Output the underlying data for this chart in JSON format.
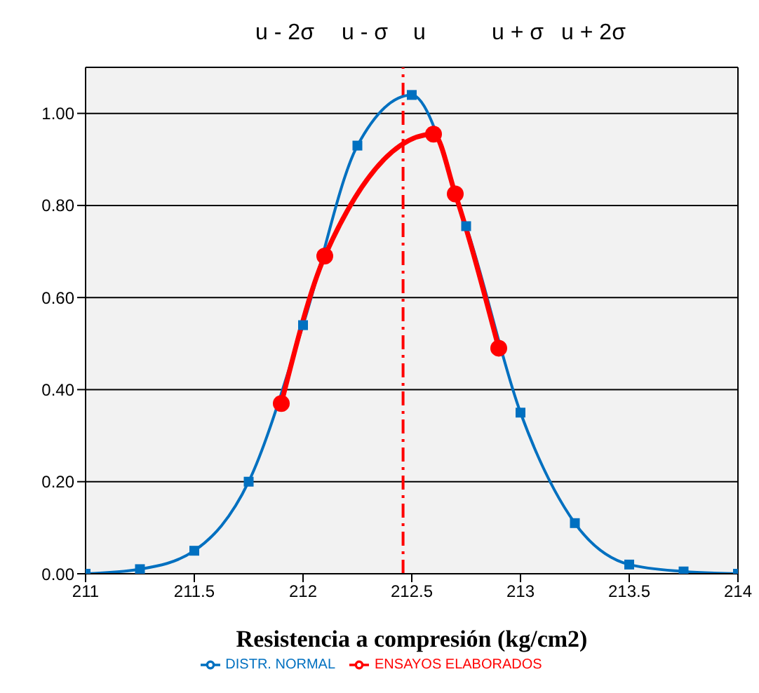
{
  "chart_data": {
    "type": "line",
    "xlabel": "Resistencia a compresión (kg/cm2)",
    "xlim": [
      211,
      214
    ],
    "xticks": [
      211,
      211.5,
      212,
      212.5,
      213,
      213.5,
      214
    ],
    "ylim": [
      0,
      1.1
    ],
    "yticks": [
      {
        "value": 0,
        "label": "0.00"
      },
      {
        "value": 0.2,
        "label": "0.20"
      },
      {
        "value": 0.4,
        "label": "0.40"
      },
      {
        "value": 0.6,
        "label": "0.60"
      },
      {
        "value": 0.8,
        "label": "0.80"
      },
      {
        "value": 1,
        "label": "1.00"
      }
    ],
    "annotations": [
      "u - 2σ",
      "u - σ",
      "u",
      "u + σ",
      "u + 2σ"
    ],
    "series": [
      {
        "name": "DISTR. NORMAL",
        "color": "#0070c0",
        "marker": "square",
        "x": [
          211,
          211.25,
          211.5,
          211.75,
          212,
          212.25,
          212.5,
          212.75,
          213,
          213.25,
          213.5,
          213.75,
          214
        ],
        "values": [
          0,
          0.01,
          0.05,
          0.2,
          0.54,
          0.93,
          1.04,
          0.755,
          0.35,
          0.11,
          0.02,
          0.005,
          0
        ]
      },
      {
        "name": "ENSAYOS ELABORADOS",
        "color": "#ff0000",
        "marker": "circle",
        "x": [
          211.9,
          212.1,
          212.6,
          212.7,
          212.9
        ],
        "values": [
          0.37,
          0.69,
          0.955,
          0.825,
          0.49
        ]
      }
    ],
    "ref_lines": [
      {
        "axis": "x",
        "value": 212.46,
        "color": "#ff0000",
        "line_style": "dashdot"
      }
    ],
    "grid": true,
    "legend": "bottom"
  }
}
